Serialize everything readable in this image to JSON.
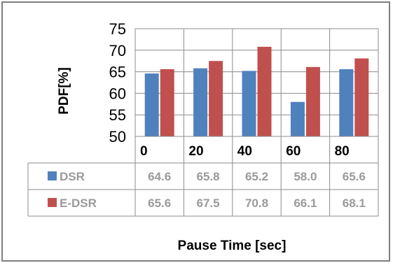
{
  "chart_data": {
    "type": "bar",
    "categories": [
      "0",
      "20",
      "40",
      "60",
      "80"
    ],
    "series": [
      {
        "name": "DSR",
        "values": [
          64.6,
          65.8,
          65.2,
          58.0,
          65.6
        ],
        "color": "#4f81bd"
      },
      {
        "name": "E-DSR",
        "values": [
          65.6,
          67.5,
          70.8,
          66.1,
          68.1
        ],
        "color": "#c0504d"
      }
    ],
    "table_values": [
      [
        "64.6",
        "65.8",
        "65.2",
        "58.0",
        "65.6"
      ],
      [
        "65.6",
        "67.5",
        "70.8",
        "66.1",
        "68.1"
      ]
    ],
    "ylabel": "PDF[%]",
    "xlabel": "Pause Time [sec]",
    "ylim": [
      50,
      75
    ],
    "yticks": [
      "75",
      "70",
      "65",
      "60",
      "55",
      "50"
    ],
    "grid": true,
    "legend": "data-table"
  }
}
